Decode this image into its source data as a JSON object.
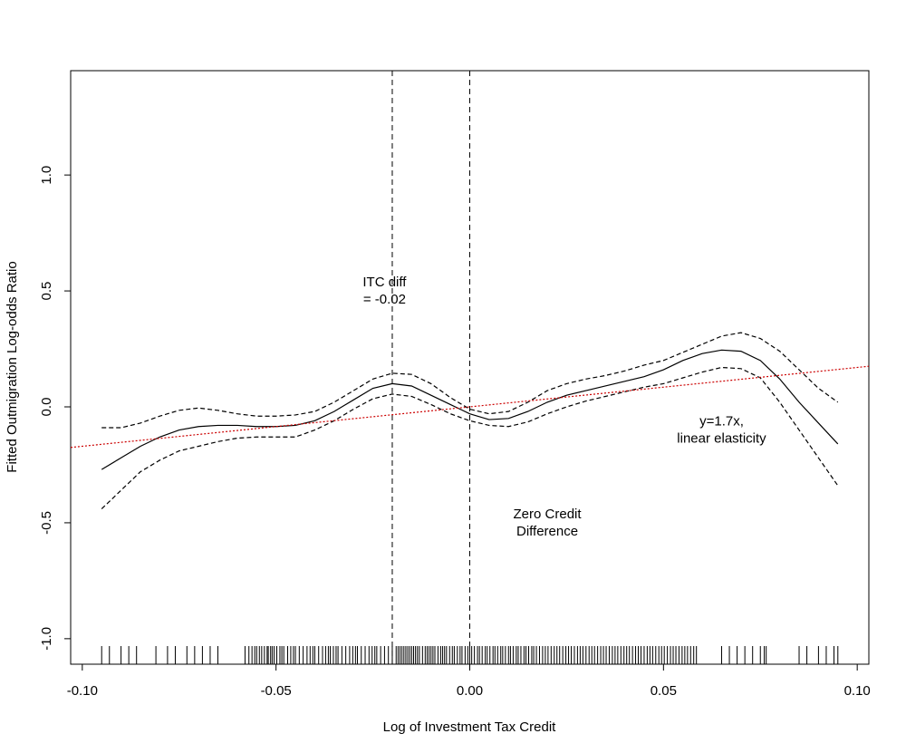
{
  "chart_data": {
    "type": "line",
    "title": "",
    "xlabel": "Log of Investment Tax Credit",
    "ylabel": "Fitted Outmigration Log-odds Ratio",
    "xlim": [
      -0.103,
      0.103
    ],
    "ylim": [
      -1.11,
      1.45
    ],
    "x_ticks": [
      -0.1,
      -0.05,
      0.0,
      0.05,
      0.1
    ],
    "x_tick_labels": [
      "-0.10",
      "-0.05",
      "0.00",
      "0.05",
      "0.10"
    ],
    "y_ticks": [
      -1.0,
      -0.5,
      0.0,
      0.5,
      1.0
    ],
    "y_tick_labels": [
      "-1.0",
      "-0.5",
      "0.0",
      "0.5",
      "1.0"
    ],
    "grid": false,
    "vlines": [
      -0.02,
      0.0
    ],
    "colors": {
      "fit": "#000000",
      "linear": "#cc0000"
    },
    "series": [
      {
        "style": "solid",
        "x": [
          -0.095,
          -0.09,
          -0.085,
          -0.08,
          -0.075,
          -0.07,
          -0.065,
          -0.06,
          -0.055,
          -0.05,
          -0.045,
          -0.04,
          -0.035,
          -0.03,
          -0.025,
          -0.02,
          -0.015,
          -0.01,
          -0.005,
          0.0,
          0.005,
          0.01,
          0.015,
          0.02,
          0.025,
          0.03,
          0.035,
          0.04,
          0.045,
          0.05,
          0.055,
          0.06,
          0.065,
          0.07,
          0.075,
          0.08,
          0.085,
          0.09,
          0.095
        ],
        "y": [
          -0.27,
          -0.22,
          -0.17,
          -0.13,
          -0.1,
          -0.085,
          -0.08,
          -0.08,
          -0.085,
          -0.085,
          -0.08,
          -0.06,
          -0.02,
          0.03,
          0.08,
          0.1,
          0.09,
          0.05,
          0.01,
          -0.03,
          -0.055,
          -0.05,
          -0.02,
          0.02,
          0.05,
          0.07,
          0.09,
          0.11,
          0.13,
          0.16,
          0.2,
          0.23,
          0.245,
          0.24,
          0.2,
          0.12,
          0.02,
          -0.07,
          -0.16
        ]
      },
      {
        "style": "dashed",
        "x": [
          -0.095,
          -0.09,
          -0.085,
          -0.08,
          -0.075,
          -0.07,
          -0.065,
          -0.06,
          -0.055,
          -0.05,
          -0.045,
          -0.04,
          -0.035,
          -0.03,
          -0.025,
          -0.02,
          -0.015,
          -0.01,
          -0.005,
          0.0,
          0.005,
          0.01,
          0.015,
          0.02,
          0.025,
          0.03,
          0.035,
          0.04,
          0.045,
          0.05,
          0.055,
          0.06,
          0.065,
          0.07,
          0.075,
          0.08,
          0.085,
          0.09,
          0.095
        ],
        "y": [
          -0.09,
          -0.09,
          -0.07,
          -0.04,
          -0.015,
          -0.005,
          -0.015,
          -0.03,
          -0.04,
          -0.04,
          -0.035,
          -0.02,
          0.02,
          0.07,
          0.12,
          0.145,
          0.14,
          0.1,
          0.04,
          -0.01,
          -0.03,
          -0.02,
          0.02,
          0.07,
          0.1,
          0.12,
          0.135,
          0.155,
          0.18,
          0.2,
          0.235,
          0.27,
          0.305,
          0.32,
          0.295,
          0.24,
          0.16,
          0.08,
          0.02
        ]
      },
      {
        "style": "dashed",
        "x": [
          -0.095,
          -0.09,
          -0.085,
          -0.08,
          -0.075,
          -0.07,
          -0.065,
          -0.06,
          -0.055,
          -0.05,
          -0.045,
          -0.04,
          -0.035,
          -0.03,
          -0.025,
          -0.02,
          -0.015,
          -0.01,
          -0.005,
          0.0,
          0.005,
          0.01,
          0.015,
          0.02,
          0.025,
          0.03,
          0.035,
          0.04,
          0.045,
          0.05,
          0.055,
          0.06,
          0.065,
          0.07,
          0.075,
          0.08,
          0.085,
          0.09,
          0.095
        ],
        "y": [
          -0.44,
          -0.36,
          -0.28,
          -0.23,
          -0.19,
          -0.17,
          -0.15,
          -0.135,
          -0.13,
          -0.13,
          -0.13,
          -0.1,
          -0.06,
          -0.01,
          0.035,
          0.055,
          0.045,
          0.01,
          -0.03,
          -0.06,
          -0.08,
          -0.085,
          -0.065,
          -0.03,
          0.0,
          0.025,
          0.045,
          0.065,
          0.085,
          0.1,
          0.125,
          0.15,
          0.17,
          0.165,
          0.125,
          0.02,
          -0.1,
          -0.22,
          -0.34
        ]
      },
      {
        "style": "dotted-red",
        "slope": 1.7,
        "x": [
          -0.103,
          0.103
        ],
        "y": [
          -0.1751,
          0.1751
        ]
      }
    ],
    "rug": [
      -0.095,
      -0.093,
      -0.09,
      -0.088,
      -0.086,
      -0.081,
      -0.078,
      -0.076,
      -0.073,
      -0.071,
      -0.069,
      -0.067,
      -0.065,
      -0.058,
      -0.057,
      -0.0562,
      -0.0555,
      -0.055,
      -0.0543,
      -0.0537,
      -0.053,
      -0.0523,
      -0.052,
      -0.0514,
      -0.051,
      -0.0505,
      -0.0498,
      -0.049,
      -0.0485,
      -0.048,
      -0.047,
      -0.0462,
      -0.0455,
      -0.045,
      -0.044,
      -0.043,
      -0.042,
      -0.0412,
      -0.0405,
      -0.04,
      -0.039,
      -0.038,
      -0.0372,
      -0.0365,
      -0.036,
      -0.0352,
      -0.0345,
      -0.034,
      -0.033,
      -0.032,
      -0.031,
      -0.0302,
      -0.0295,
      -0.029,
      -0.028,
      -0.027,
      -0.026,
      -0.0252,
      -0.0245,
      -0.024,
      -0.023,
      -0.022,
      -0.021,
      -0.02,
      -0.019,
      -0.0185,
      -0.018,
      -0.0175,
      -0.017,
      -0.0165,
      -0.016,
      -0.0155,
      -0.015,
      -0.0145,
      -0.014,
      -0.0135,
      -0.013,
      -0.0122,
      -0.0115,
      -0.011,
      -0.0105,
      -0.01,
      -0.0095,
      -0.009,
      -0.0082,
      -0.0075,
      -0.007,
      -0.0065,
      -0.006,
      -0.0052,
      -0.0045,
      -0.004,
      -0.0032,
      -0.0025,
      -0.002,
      -0.0012,
      -0.0005,
      0.0,
      0.0005,
      0.0012,
      0.002,
      0.0025,
      0.0032,
      0.004,
      0.0045,
      0.0052,
      0.006,
      0.0065,
      0.0072,
      0.008,
      0.0085,
      0.0092,
      0.01,
      0.0105,
      0.0112,
      0.012,
      0.0125,
      0.0132,
      0.014,
      0.0145,
      0.0152,
      0.016,
      0.0165,
      0.0172,
      0.018,
      0.0188,
      0.0195,
      0.0202,
      0.021,
      0.0218,
      0.0225,
      0.0232,
      0.024,
      0.0248,
      0.0255,
      0.0262,
      0.027,
      0.0278,
      0.0285,
      0.0292,
      0.03,
      0.0308,
      0.0315,
      0.0322,
      0.033,
      0.0338,
      0.0345,
      0.0352,
      0.036,
      0.0368,
      0.0375,
      0.0382,
      0.039,
      0.0398,
      0.0405,
      0.0412,
      0.042,
      0.0428,
      0.0435,
      0.0442,
      0.045,
      0.0458,
      0.0465,
      0.0472,
      0.048,
      0.0488,
      0.0495,
      0.0502,
      0.051,
      0.0518,
      0.0525,
      0.0532,
      0.054,
      0.0548,
      0.0555,
      0.0562,
      0.057,
      0.0578,
      0.0585,
      0.065,
      0.067,
      0.069,
      0.071,
      0.073,
      0.075,
      0.076,
      0.0765,
      0.085,
      0.087,
      0.09,
      0.092,
      0.094,
      0.095
    ],
    "annotations": [
      {
        "lines": [
          "ITC diff",
          "= -0.02"
        ],
        "x": -0.022,
        "y": 0.52
      },
      {
        "lines": [
          "Zero Credit",
          "Difference"
        ],
        "x": 0.02,
        "y": -0.48
      },
      {
        "lines": [
          "y=1.7x,",
          "linear elasticity"
        ],
        "x": 0.065,
        "y": -0.08
      }
    ]
  }
}
